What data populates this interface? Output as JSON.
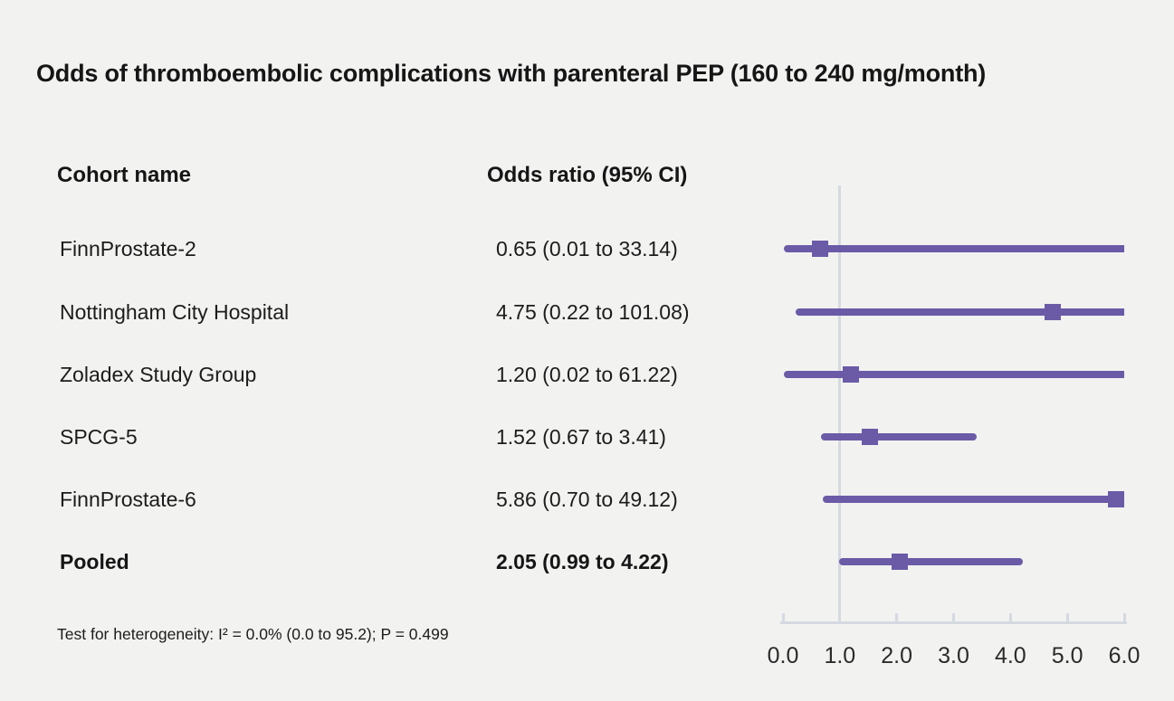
{
  "title": "Odds of thromboembolic complications with parenteral PEP (160 to 240 mg/month)",
  "columns": {
    "cohort": "Cohort name",
    "odds_ratio": "Odds ratio (95% CI)"
  },
  "footnote": "Test for heterogeneity: I² = 0.0% (0.0 to 95.2); P = 0.499",
  "colors": {
    "accent": "#6b5ba7",
    "axis": "#d5dae1",
    "background": "#f2f2f1",
    "text": "#1c1c1c"
  },
  "chart_data": {
    "type": "forest",
    "title": "Odds of thromboembolic complications with parenteral PEP (160 to 240 mg/month)",
    "xlabel": "",
    "x_axis": {
      "min": 0,
      "max": 6,
      "ticks": [
        0,
        1,
        2,
        3,
        4,
        5,
        6
      ],
      "tick_labels": [
        "0.0",
        "1.0",
        "2.0",
        "3.0",
        "4.0",
        "5.0",
        "6.0"
      ],
      "reference_line": 1.0,
      "grid": false
    },
    "rows": [
      {
        "cohort": "FinnProstate-2",
        "or_label": "0.65 (0.01 to 33.14)",
        "estimate": 0.65,
        "ci_low": 0.01,
        "ci_high": 33.14,
        "bold": false
      },
      {
        "cohort": "Nottingham City Hospital",
        "or_label": "4.75 (0.22 to 101.08)",
        "estimate": 4.75,
        "ci_low": 0.22,
        "ci_high": 101.08,
        "bold": false
      },
      {
        "cohort": "Zoladex Study Group",
        "or_label": "1.20 (0.02 to 61.22)",
        "estimate": 1.2,
        "ci_low": 0.02,
        "ci_high": 61.22,
        "bold": false
      },
      {
        "cohort": "SPCG-5",
        "or_label": "1.52 (0.67 to 3.41)",
        "estimate": 1.52,
        "ci_low": 0.67,
        "ci_high": 3.41,
        "bold": false
      },
      {
        "cohort": "FinnProstate-6",
        "or_label": "5.86 (0.70 to 49.12)",
        "estimate": 5.86,
        "ci_low": 0.7,
        "ci_high": 49.12,
        "bold": false
      },
      {
        "cohort": "Pooled",
        "or_label": "2.05 (0.99 to 4.22)",
        "estimate": 2.05,
        "ci_low": 0.99,
        "ci_high": 4.22,
        "bold": true
      }
    ],
    "heterogeneity_note": "Test for heterogeneity: I² = 0.0% (0.0 to 95.2); P = 0.499"
  }
}
